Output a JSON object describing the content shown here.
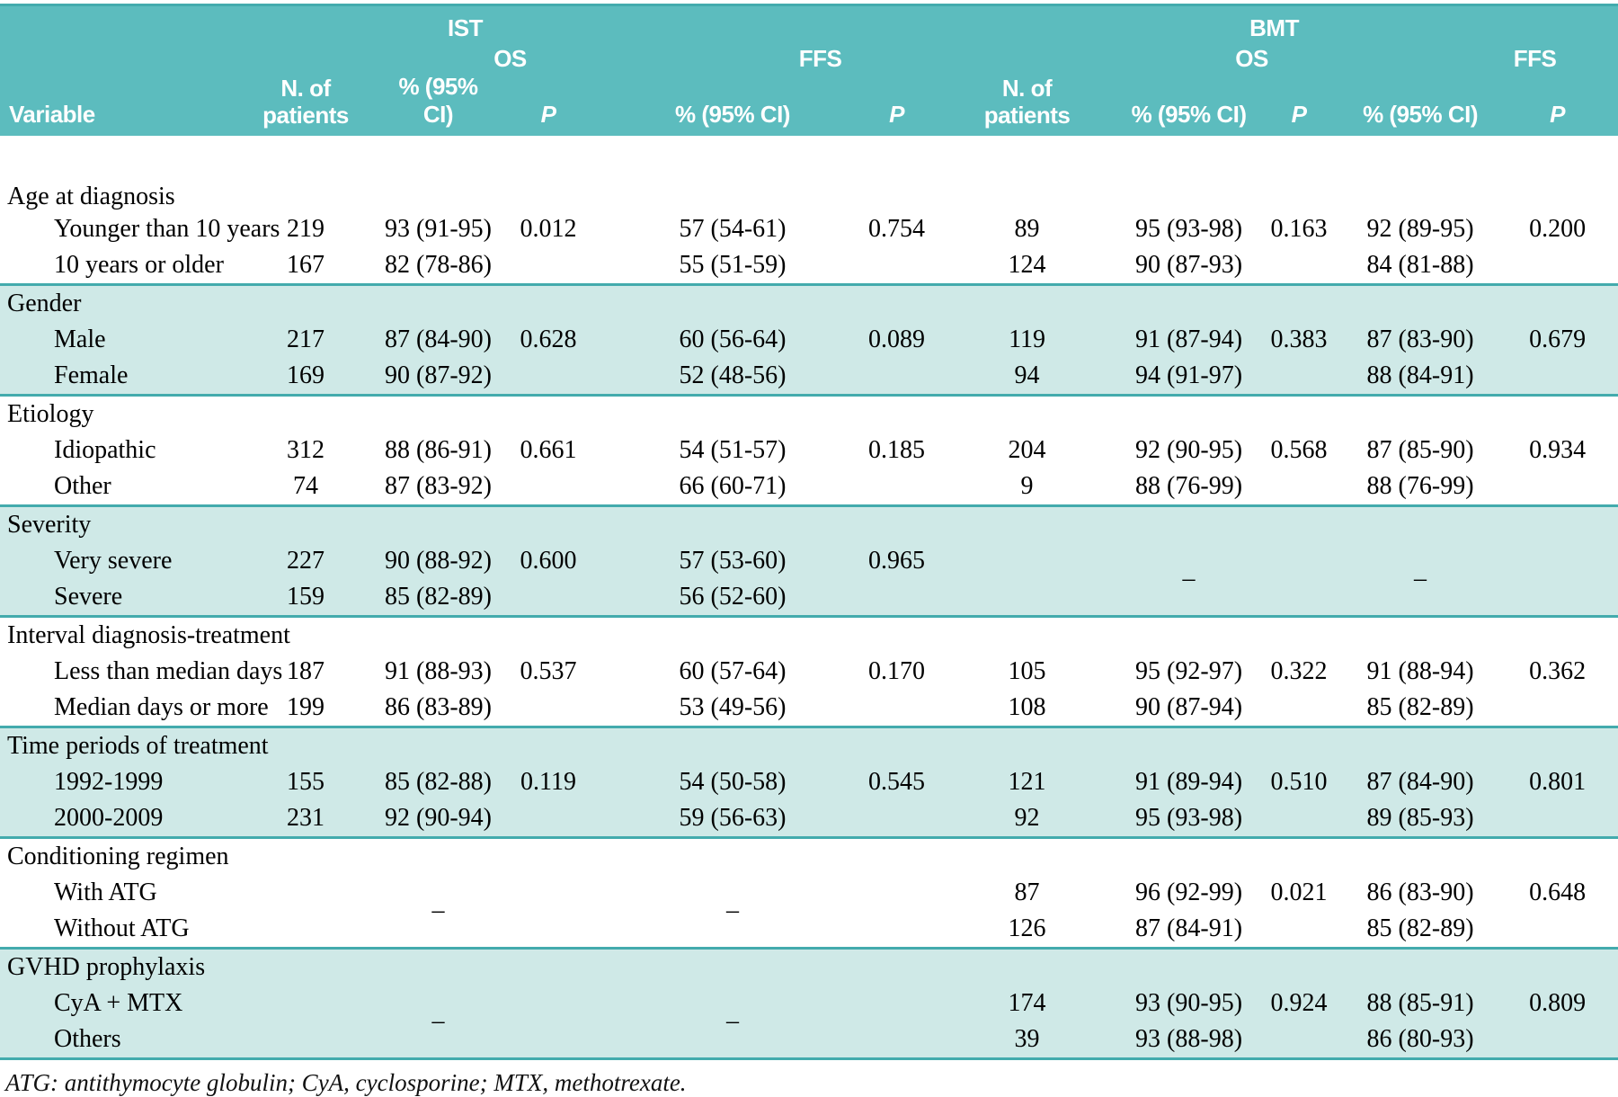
{
  "table": {
    "header": {
      "variable": "Variable",
      "group_ist": "IST",
      "group_bmt": "BMT",
      "os": "OS",
      "ffs": "FFS",
      "n_line1": "N. of",
      "n_line2": "patients",
      "ci": "% (95% CI)",
      "p": "P"
    },
    "dash": "–",
    "colors": {
      "header_teal": "#5cbcbe",
      "band": "#cfe9e7",
      "line": "#43abad"
    },
    "groups": [
      {
        "label": "Age at diagnosis",
        "shaded": false,
        "rows": [
          {
            "name": "Younger than 10 years",
            "ist_n": "219",
            "ist_os_ci": "93 (91-95)",
            "ist_os_p": "0.012",
            "ist_ffs_ci": "57 (54-61)",
            "ist_ffs_p": "0.754",
            "bmt_n": "89",
            "bmt_os_ci": "95 (93-98)",
            "bmt_os_p": "0.163",
            "bmt_ffs_ci": "92 (89-95)",
            "bmt_ffs_p": "0.200"
          },
          {
            "name": "10 years or older",
            "ist_n": "167",
            "ist_os_ci": "82 (78-86)",
            "ist_ffs_ci": "55 (51-59)",
            "bmt_n": "124",
            "bmt_os_ci": "90 (87-93)",
            "bmt_ffs_ci": "84 (81-88)"
          }
        ]
      },
      {
        "label": "Gender",
        "shaded": true,
        "rows": [
          {
            "name": "Male",
            "ist_n": "217",
            "ist_os_ci": "87 (84-90)",
            "ist_os_p": "0.628",
            "ist_ffs_ci": "60 (56-64)",
            "ist_ffs_p": "0.089",
            "bmt_n": "119",
            "bmt_os_ci": "91 (87-94)",
            "bmt_os_p": "0.383",
            "bmt_ffs_ci": "87 (83-90)",
            "bmt_ffs_p": "0.679"
          },
          {
            "name": "Female",
            "ist_n": "169",
            "ist_os_ci": "90 (87-92)",
            "ist_ffs_ci": "52 (48-56)",
            "bmt_n": "94",
            "bmt_os_ci": "94 (91-97)",
            "bmt_ffs_ci": "88 (84-91)"
          }
        ]
      },
      {
        "label": "Etiology",
        "shaded": false,
        "rows": [
          {
            "name": "Idiopathic",
            "ist_n": "312",
            "ist_os_ci": "88 (86-91)",
            "ist_os_p": "0.661",
            "ist_ffs_ci": "54 (51-57)",
            "ist_ffs_p": "0.185",
            "bmt_n": "204",
            "bmt_os_ci": "92 (90-95)",
            "bmt_os_p": "0.568",
            "bmt_ffs_ci": "87 (85-90)",
            "bmt_ffs_p": "0.934"
          },
          {
            "name": "Other",
            "ist_n": "74",
            "ist_os_ci": "87 (83-92)",
            "ist_ffs_ci": "66 (60-71)",
            "bmt_n": "9",
            "bmt_os_ci": "88 (76-99)",
            "bmt_ffs_ci": "88 (76-99)"
          }
        ]
      },
      {
        "label": "Severity",
        "shaded": true,
        "dash_cells": [
          "bmt_os_ci",
          "bmt_ffs_ci"
        ],
        "rows": [
          {
            "name": "Very severe",
            "ist_n": "227",
            "ist_os_ci": "90 (88-92)",
            "ist_os_p": "0.600",
            "ist_ffs_ci": "57 (53-60)",
            "ist_ffs_p": "0.965"
          },
          {
            "name": "Severe",
            "ist_n": "159",
            "ist_os_ci": "85 (82-89)",
            "ist_ffs_ci": "56 (52-60)"
          }
        ]
      },
      {
        "label": "Interval diagnosis-treatment",
        "shaded": false,
        "rows": [
          {
            "name": "Less than median days",
            "ist_n": "187",
            "ist_os_ci": "91 (88-93)",
            "ist_os_p": "0.537",
            "ist_ffs_ci": "60 (57-64)",
            "ist_ffs_p": "0.170",
            "bmt_n": "105",
            "bmt_os_ci": "95 (92-97)",
            "bmt_os_p": "0.322",
            "bmt_ffs_ci": "91 (88-94)",
            "bmt_ffs_p": "0.362"
          },
          {
            "name": "Median days or more",
            "ist_n": "199",
            "ist_os_ci": "86 (83-89)",
            "ist_ffs_ci": "53 (49-56)",
            "bmt_n": "108",
            "bmt_os_ci": "90 (87-94)",
            "bmt_ffs_ci": "85 (82-89)"
          }
        ]
      },
      {
        "label": "Time periods of treatment",
        "shaded": true,
        "rows": [
          {
            "name": "1992-1999",
            "ist_n": "155",
            "ist_os_ci": "85 (82-88)",
            "ist_os_p": "0.119",
            "ist_ffs_ci": "54 (50-58)",
            "ist_ffs_p": "0.545",
            "bmt_n": "121",
            "bmt_os_ci": "91 (89-94)",
            "bmt_os_p": "0.510",
            "bmt_ffs_ci": "87 (84-90)",
            "bmt_ffs_p": "0.801"
          },
          {
            "name": "2000-2009",
            "ist_n": "231",
            "ist_os_ci": "92 (90-94)",
            "ist_ffs_ci": "59 (56-63)",
            "bmt_n": "92",
            "bmt_os_ci": "95 (93-98)",
            "bmt_ffs_ci": "89 (85-93)"
          }
        ]
      },
      {
        "label": "Conditioning regimen",
        "shaded": false,
        "dash_cells": [
          "ist_os_ci",
          "ist_ffs_ci"
        ],
        "rows": [
          {
            "name": "With ATG",
            "bmt_n": "87",
            "bmt_os_ci": "96 (92-99)",
            "bmt_os_p": "0.021",
            "bmt_ffs_ci": "86 (83-90)",
            "bmt_ffs_p": "0.648"
          },
          {
            "name": "Without ATG",
            "bmt_n": "126",
            "bmt_os_ci": "87 (84-91)",
            "bmt_ffs_ci": "85 (82-89)"
          }
        ]
      },
      {
        "label": "GVHD prophylaxis",
        "shaded": true,
        "dash_cells": [
          "ist_os_ci",
          "ist_ffs_ci"
        ],
        "rows": [
          {
            "name": "CyA + MTX",
            "bmt_n": "174",
            "bmt_os_ci": "93 (90-95)",
            "bmt_os_p": "0.924",
            "bmt_ffs_ci": "88 (85-91)",
            "bmt_ffs_p": "0.809"
          },
          {
            "name": "Others",
            "bmt_n": "39",
            "bmt_os_ci": "93 (88-98)",
            "bmt_ffs_ci": "86 (80-93)"
          }
        ]
      }
    ],
    "footnote": "ATG: antithymocyte globulin; CyA, cyclosporine; MTX, methotrexate."
  }
}
